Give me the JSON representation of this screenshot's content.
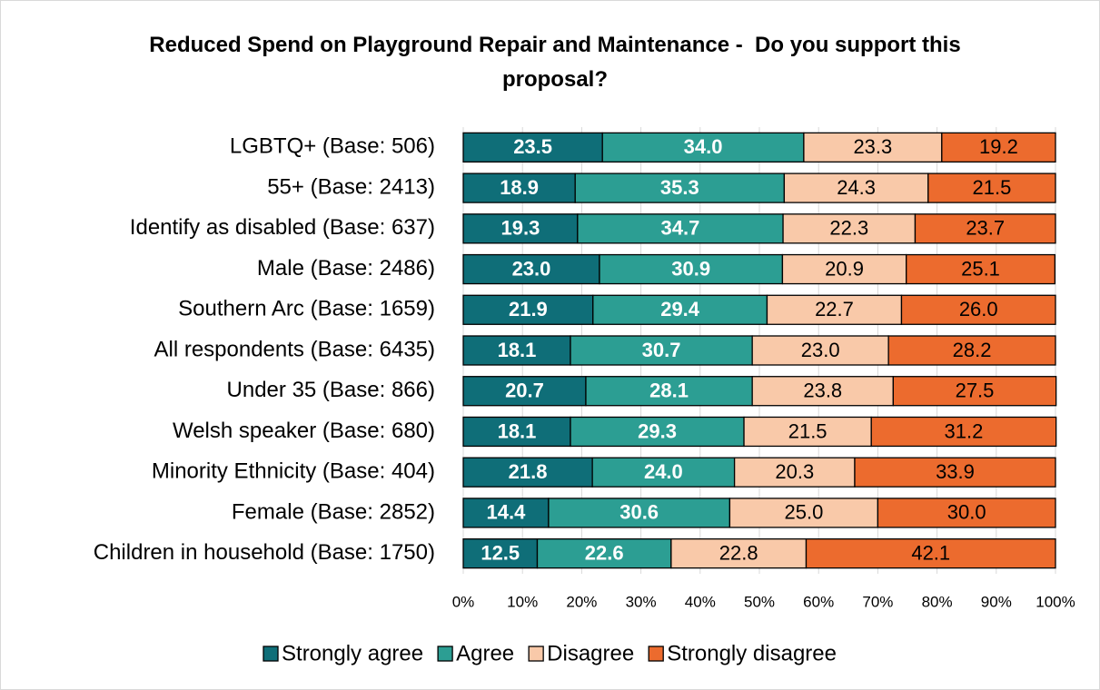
{
  "chart_data": {
    "type": "stacked_barh",
    "title": "Reduced Spend on Playground Repair and Maintenance -  Do you support this proposal?",
    "categories": [
      "LGBTQ+ (Base: 506)",
      "55+ (Base: 2413)",
      "Identify as disabled (Base: 637)",
      "Male (Base: 2486)",
      "Southern Arc (Base: 1659)",
      "All respondents (Base: 6435)",
      "Under 35 (Base: 866)",
      "Welsh speaker (Base: 680)",
      "Minority Ethnicity (Base: 404)",
      "Female (Base: 2852)",
      "Children in household (Base: 1750)"
    ],
    "series": [
      {
        "name": "Strongly agree",
        "color": "#0f6e78",
        "values": [
          23.5,
          18.9,
          19.3,
          23.0,
          21.9,
          18.1,
          20.7,
          18.1,
          21.8,
          14.4,
          12.5
        ],
        "value_labels": [
          "23.5",
          "18.9",
          "19.3",
          "23.0",
          "21.9",
          "18.1",
          "20.7",
          "18.1",
          "21.8",
          "14.4",
          "12.5"
        ]
      },
      {
        "name": "Agree",
        "color": "#2c9e93",
        "values": [
          34.0,
          35.3,
          34.7,
          30.9,
          29.4,
          30.7,
          28.1,
          29.3,
          24.0,
          30.6,
          22.6
        ],
        "value_labels": [
          "34.0",
          "35.3",
          "34.7",
          "30.9",
          "29.4",
          "30.7",
          "28.1",
          "29.3",
          "24.0",
          "30.6",
          "22.6"
        ]
      },
      {
        "name": "Disagree",
        "color": "#f9c9a9",
        "values": [
          23.3,
          24.3,
          22.3,
          20.9,
          22.7,
          23.0,
          23.8,
          21.5,
          20.3,
          25.0,
          22.8
        ],
        "value_labels": [
          "23.3",
          "24.3",
          "22.3",
          "20.9",
          "22.7",
          "23.0",
          "23.8",
          "21.5",
          "20.3",
          "25.0",
          "22.8"
        ]
      },
      {
        "name": "Strongly disagree",
        "color": "#ec6b2e",
        "values": [
          19.2,
          21.5,
          23.7,
          25.1,
          26.0,
          28.2,
          27.5,
          31.2,
          33.9,
          30.0,
          42.1
        ],
        "value_labels": [
          "19.2",
          "21.5",
          "23.7",
          "25.1",
          "26.0",
          "28.2",
          "27.5",
          "31.2",
          "33.9",
          "30.0",
          "42.1"
        ]
      }
    ],
    "xlim": [
      0,
      100
    ],
    "xticks": [
      {
        "value": 0,
        "label": "0%"
      },
      {
        "value": 10,
        "label": "10%"
      },
      {
        "value": 20,
        "label": "20%"
      },
      {
        "value": 30,
        "label": "30%"
      },
      {
        "value": 40,
        "label": "40%"
      },
      {
        "value": 50,
        "label": "50%"
      },
      {
        "value": 60,
        "label": "60%"
      },
      {
        "value": 70,
        "label": "70%"
      },
      {
        "value": 80,
        "label": "80%"
      },
      {
        "value": 90,
        "label": "90%"
      },
      {
        "value": 100,
        "label": "100%"
      }
    ],
    "grid": true,
    "legend": "bottom"
  }
}
